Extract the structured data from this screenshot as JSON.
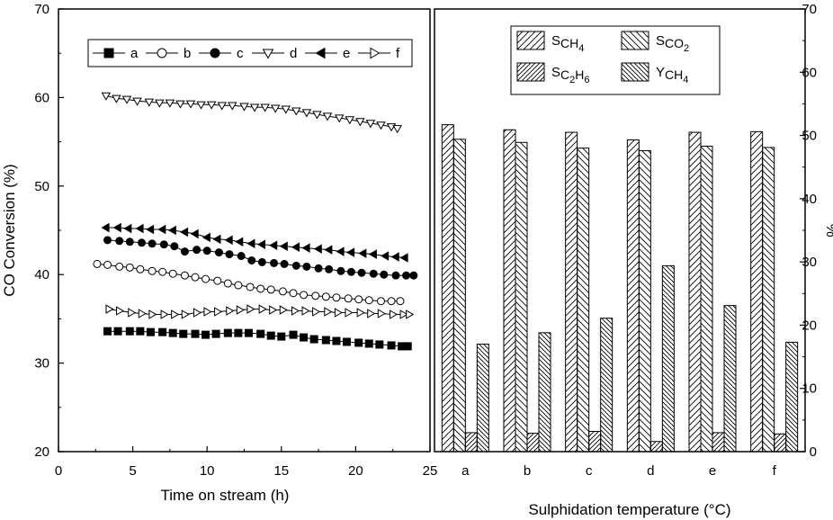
{
  "chart_data": [
    {
      "type": "line",
      "xlabel": "Time on stream (h)",
      "ylabel": "CO Conversion (%)",
      "xlim": [
        0,
        25
      ],
      "ylim": [
        20,
        70
      ],
      "xticks": [
        "0",
        "5",
        "10",
        "15",
        "20",
        "25"
      ],
      "yticks": [
        "20",
        "30",
        "40",
        "50",
        "60",
        "70"
      ],
      "legend_position": "top",
      "series": [
        {
          "name": "a",
          "marker": "filled-square",
          "x": [
            3.3,
            4.0,
            4.8,
            5.5,
            6.2,
            7.0,
            7.7,
            8.4,
            9.2,
            9.9,
            10.6,
            11.4,
            12.1,
            12.8,
            13.6,
            14.3,
            15.0,
            15.8,
            16.5,
            17.2,
            18.0,
            18.7,
            19.4,
            20.2,
            20.9,
            21.6,
            22.4,
            23.1,
            23.5
          ],
          "y": [
            33.6,
            33.6,
            33.6,
            33.6,
            33.5,
            33.5,
            33.4,
            33.3,
            33.3,
            33.2,
            33.3,
            33.4,
            33.4,
            33.4,
            33.3,
            33.1,
            33.0,
            33.2,
            32.9,
            32.7,
            32.6,
            32.5,
            32.4,
            32.3,
            32.2,
            32.1,
            32.0,
            31.9,
            31.9
          ]
        },
        {
          "name": "b",
          "marker": "open-circle",
          "x": [
            2.6,
            3.3,
            4.1,
            4.8,
            5.5,
            6.3,
            7.0,
            7.7,
            8.5,
            9.2,
            9.9,
            10.7,
            11.4,
            12.1,
            12.9,
            13.6,
            14.3,
            15.1,
            15.8,
            16.5,
            17.3,
            18.0,
            18.7,
            19.5,
            20.2,
            20.9,
            21.7,
            22.4,
            23.0
          ],
          "y": [
            41.2,
            41.1,
            40.9,
            40.8,
            40.6,
            40.4,
            40.3,
            40.1,
            39.9,
            39.7,
            39.5,
            39.3,
            39.0,
            38.8,
            38.6,
            38.4,
            38.3,
            38.1,
            37.9,
            37.7,
            37.6,
            37.5,
            37.4,
            37.3,
            37.2,
            37.1,
            37.0,
            37.0,
            37.0
          ]
        },
        {
          "name": "c",
          "marker": "filled-circle",
          "x": [
            3.3,
            4.1,
            4.8,
            5.6,
            6.3,
            7.1,
            7.8,
            8.5,
            9.3,
            10.0,
            10.8,
            11.5,
            12.3,
            13.0,
            13.7,
            14.5,
            15.2,
            16.0,
            16.7,
            17.5,
            18.2,
            19.0,
            19.7,
            20.4,
            21.2,
            21.9,
            22.7,
            23.4,
            23.9
          ],
          "y": [
            43.9,
            43.8,
            43.7,
            43.6,
            43.5,
            43.4,
            43.2,
            42.6,
            42.8,
            42.7,
            42.5,
            42.3,
            42.1,
            41.6,
            41.4,
            41.3,
            41.2,
            41.0,
            40.9,
            40.7,
            40.6,
            40.4,
            40.3,
            40.2,
            40.1,
            40.0,
            39.9,
            39.9,
            39.9
          ]
        },
        {
          "name": "d",
          "marker": "open-triangle-down",
          "x": [
            3.2,
            3.9,
            4.6,
            5.3,
            6.1,
            6.8,
            7.5,
            8.2,
            8.9,
            9.6,
            10.3,
            11.0,
            11.7,
            12.5,
            13.2,
            13.9,
            14.6,
            15.3,
            16.0,
            16.7,
            17.4,
            18.1,
            18.9,
            19.6,
            20.3,
            21.0,
            21.7,
            22.4,
            22.8
          ],
          "y": [
            60.2,
            59.9,
            59.8,
            59.6,
            59.5,
            59.4,
            59.4,
            59.3,
            59.3,
            59.2,
            59.2,
            59.1,
            59.1,
            59.0,
            58.9,
            58.9,
            58.8,
            58.7,
            58.5,
            58.3,
            58.1,
            57.9,
            57.7,
            57.5,
            57.3,
            57.1,
            56.9,
            56.7,
            56.5
          ]
        },
        {
          "name": "e",
          "marker": "filled-triangle-left",
          "x": [
            3.2,
            4.0,
            4.7,
            5.5,
            6.2,
            7.0,
            7.7,
            8.5,
            9.2,
            10.0,
            10.7,
            11.5,
            12.2,
            13.0,
            13.7,
            14.5,
            15.2,
            16.0,
            16.7,
            17.5,
            18.2,
            19.0,
            19.7,
            20.5,
            21.2,
            22.0,
            22.7,
            23.3
          ],
          "y": [
            45.3,
            45.3,
            45.2,
            45.2,
            45.1,
            45.1,
            45.0,
            44.8,
            44.6,
            44.2,
            44.0,
            43.9,
            43.7,
            43.5,
            43.4,
            43.3,
            43.2,
            43.1,
            43.0,
            42.9,
            42.8,
            42.6,
            42.5,
            42.4,
            42.3,
            42.1,
            42.0,
            41.9
          ]
        },
        {
          "name": "f",
          "marker": "open-triangle-right",
          "x": [
            3.4,
            4.1,
            4.9,
            5.6,
            6.3,
            7.1,
            7.8,
            8.5,
            9.3,
            10.0,
            10.7,
            11.5,
            12.2,
            12.9,
            13.7,
            14.4,
            15.1,
            15.9,
            16.6,
            17.3,
            18.1,
            18.8,
            19.5,
            20.3,
            21.0,
            21.7,
            22.5,
            23.2,
            23.6
          ],
          "y": [
            36.1,
            35.9,
            35.7,
            35.6,
            35.5,
            35.5,
            35.5,
            35.5,
            35.7,
            35.8,
            35.8,
            35.9,
            36.0,
            36.1,
            36.1,
            36.0,
            36.0,
            35.9,
            35.9,
            35.8,
            35.8,
            35.7,
            35.7,
            35.7,
            35.6,
            35.6,
            35.5,
            35.5,
            35.5
          ]
        }
      ]
    },
    {
      "type": "bar",
      "xlabel": "Sulphidation temperature (°C)",
      "ylabel": "%",
      "ylim": [
        0,
        70
      ],
      "yticks": [
        "0",
        "10",
        "20",
        "30",
        "40",
        "50",
        "60",
        "70"
      ],
      "categories": [
        "a",
        "b",
        "c",
        "d",
        "e",
        "f"
      ],
      "legend_position": "top",
      "series": [
        {
          "name": "S",
          "sub": "CH4",
          "pattern": "hatch-right",
          "values": [
            51.7,
            50.9,
            50.5,
            49.3,
            50.5,
            50.6
          ]
        },
        {
          "name": "S",
          "sub": "CO2",
          "pattern": "hatch-left",
          "values": [
            49.4,
            48.9,
            48.0,
            47.6,
            48.3,
            48.1
          ]
        },
        {
          "name": "S",
          "sub": "C2H6",
          "pattern": "hatch-right-dense",
          "values": [
            3.0,
            2.9,
            3.2,
            1.6,
            3.0,
            2.8
          ]
        },
        {
          "name": "Y",
          "sub": "CH4",
          "pattern": "hatch-left-dense",
          "values": [
            17.0,
            18.8,
            21.1,
            29.4,
            23.1,
            17.3
          ]
        }
      ]
    }
  ]
}
